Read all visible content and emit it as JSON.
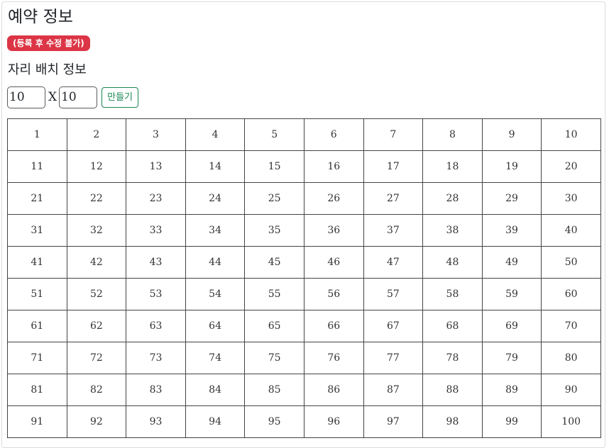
{
  "page": {
    "title": "예약 정보",
    "badge": "(등록 후 수정 불가)",
    "seat_section_title": "자리 배치 정보"
  },
  "size_form": {
    "rows_value": "10",
    "separator": "X",
    "cols_value": "10",
    "make_button_label": "만들기"
  },
  "seat_grid": {
    "rows": [
      [
        "1",
        "2",
        "3",
        "4",
        "5",
        "6",
        "7",
        "8",
        "9",
        "10"
      ],
      [
        "11",
        "12",
        "13",
        "14",
        "15",
        "16",
        "17",
        "18",
        "19",
        "20"
      ],
      [
        "21",
        "22",
        "23",
        "24",
        "25",
        "26",
        "27",
        "28",
        "29",
        "30"
      ],
      [
        "31",
        "32",
        "33",
        "34",
        "35",
        "36",
        "37",
        "38",
        "39",
        "40"
      ],
      [
        "41",
        "42",
        "43",
        "44",
        "45",
        "46",
        "47",
        "48",
        "49",
        "50"
      ],
      [
        "51",
        "52",
        "53",
        "54",
        "55",
        "56",
        "57",
        "58",
        "59",
        "60"
      ],
      [
        "61",
        "62",
        "63",
        "64",
        "65",
        "66",
        "67",
        "68",
        "69",
        "70"
      ],
      [
        "71",
        "72",
        "73",
        "74",
        "75",
        "76",
        "77",
        "78",
        "79",
        "80"
      ],
      [
        "81",
        "82",
        "83",
        "84",
        "85",
        "86",
        "87",
        "88",
        "89",
        "90"
      ],
      [
        "91",
        "92",
        "93",
        "94",
        "95",
        "96",
        "97",
        "98",
        "99",
        "100"
      ]
    ]
  },
  "colors": {
    "badge_bg": "#dc3545",
    "button_accent": "#198754"
  }
}
